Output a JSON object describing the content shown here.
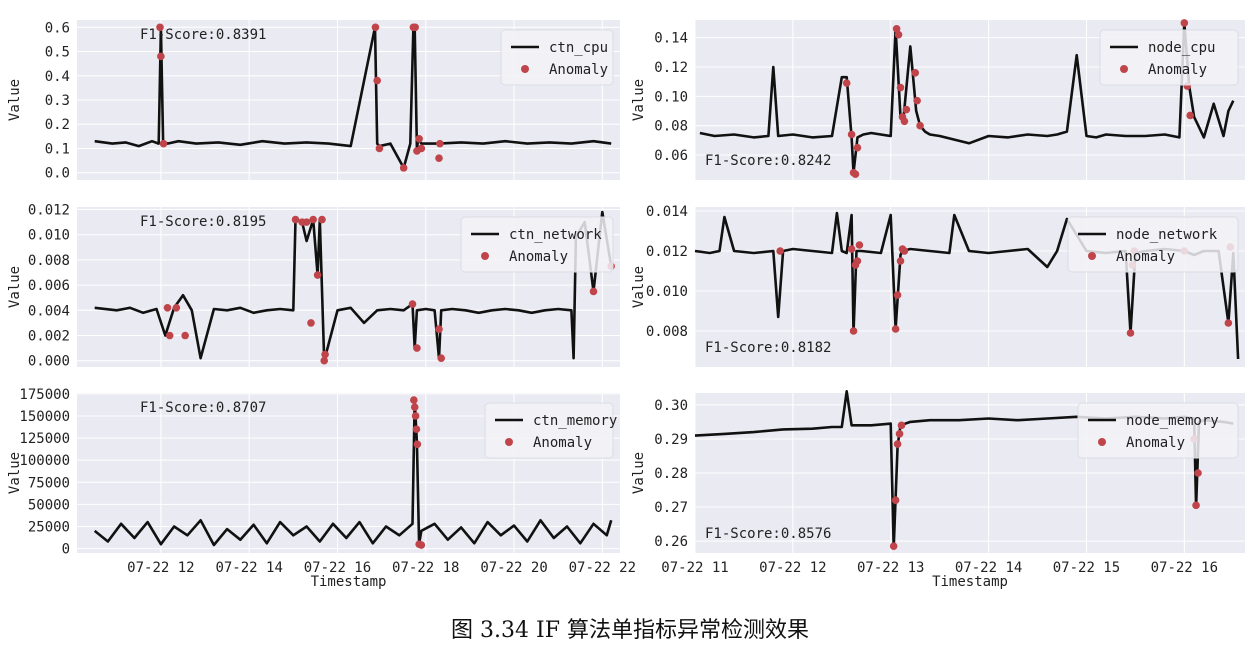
{
  "caption": "图 3.34 IF 算法单指标异常检测效果",
  "style": {
    "panel_bg": "#eaeaf2",
    "grid": "#ffffff",
    "line": "#111111",
    "anomaly": "#c0454a",
    "legend_bg": "#f2f2f7"
  },
  "chart_data": [
    {
      "type": "line",
      "id": "ctn_cpu",
      "ylabel": "Value",
      "xlabel": "",
      "ylim": [
        -0.03,
        0.63
      ],
      "xlim": [
        10.1,
        22.4
      ],
      "yticks": [
        "0.0",
        "0.1",
        "0.2",
        "0.3",
        "0.4",
        "0.5",
        "0.6"
      ],
      "ytick_values": [
        0,
        0.1,
        0.2,
        0.3,
        0.4,
        0.5,
        0.6
      ],
      "xticks": [],
      "xtick_values": [
        12,
        14,
        16,
        18,
        20,
        22
      ],
      "legend": [
        "ctn_cpu",
        "Anomaly"
      ],
      "legend_loc": "upper right",
      "annotation": "F1-Score:0.8391",
      "annotation_loc": "top-left",
      "series": [
        {
          "name": "ctn_cpu",
          "x": [
            10.5,
            10.9,
            11.2,
            11.5,
            11.8,
            11.95,
            12.0,
            12.05,
            12.15,
            12.4,
            12.8,
            13.3,
            13.8,
            14.3,
            14.8,
            15.3,
            15.8,
            16.3,
            16.85,
            16.9,
            16.95,
            17.2,
            17.5,
            17.65,
            17.72,
            17.75,
            17.8,
            17.83,
            17.9,
            18.3,
            18.8,
            19.3,
            19.8,
            20.3,
            20.8,
            21.3,
            21.8,
            22.2
          ],
          "y": [
            0.13,
            0.12,
            0.125,
            0.11,
            0.13,
            0.12,
            0.6,
            0.13,
            0.12,
            0.13,
            0.12,
            0.125,
            0.115,
            0.13,
            0.12,
            0.125,
            0.12,
            0.11,
            0.6,
            0.12,
            0.11,
            0.12,
            0.02,
            0.12,
            0.6,
            0.6,
            0.1,
            0.14,
            0.12,
            0.12,
            0.125,
            0.12,
            0.13,
            0.12,
            0.125,
            0.12,
            0.13,
            0.12
          ]
        }
      ],
      "anomalies": {
        "x": [
          11.98,
          12.0,
          12.06,
          16.86,
          16.9,
          16.95,
          17.5,
          17.72,
          17.76,
          17.8,
          17.85,
          17.9,
          18.3,
          18.32
        ],
        "y": [
          0.6,
          0.48,
          0.12,
          0.6,
          0.38,
          0.1,
          0.02,
          0.6,
          0.6,
          0.09,
          0.14,
          0.1,
          0.06,
          0.12
        ]
      }
    },
    {
      "type": "line",
      "id": "node_cpu",
      "ylabel": "Value",
      "xlabel": "",
      "ylim": [
        0.043,
        0.152
      ],
      "xlim": [
        11.0,
        16.62
      ],
      "yticks": [
        "0.06",
        "0.08",
        "0.10",
        "0.12",
        "0.14"
      ],
      "ytick_values": [
        0.06,
        0.08,
        0.1,
        0.12,
        0.14
      ],
      "xticks": [],
      "xtick_values": [
        11,
        12,
        13,
        14,
        15,
        16
      ],
      "legend": [
        "node_cpu",
        "Anomaly"
      ],
      "legend_loc": "upper right",
      "annotation": "F1-Score:0.8242",
      "annotation_loc": "bottom-left",
      "series": [
        {
          "name": "node_cpu",
          "x": [
            11.05,
            11.2,
            11.4,
            11.6,
            11.75,
            11.8,
            11.85,
            12.0,
            12.2,
            12.4,
            12.5,
            12.55,
            12.6,
            12.62,
            12.66,
            12.72,
            12.8,
            13.0,
            13.05,
            13.1,
            13.13,
            13.2,
            13.26,
            13.3,
            13.35,
            13.4,
            13.5,
            13.8,
            14.0,
            14.2,
            14.4,
            14.6,
            14.7,
            14.8,
            14.9,
            15.0,
            15.1,
            15.2,
            15.4,
            15.6,
            15.8,
            15.95,
            16.0,
            16.05,
            16.1,
            16.2,
            16.3,
            16.4,
            16.45,
            16.5
          ],
          "y": [
            0.075,
            0.073,
            0.074,
            0.072,
            0.073,
            0.12,
            0.073,
            0.074,
            0.072,
            0.073,
            0.113,
            0.113,
            0.072,
            0.048,
            0.072,
            0.074,
            0.075,
            0.073,
            0.146,
            0.086,
            0.085,
            0.134,
            0.09,
            0.08,
            0.076,
            0.074,
            0.073,
            0.068,
            0.073,
            0.072,
            0.074,
            0.073,
            0.074,
            0.076,
            0.128,
            0.073,
            0.072,
            0.074,
            0.073,
            0.073,
            0.074,
            0.072,
            0.15,
            0.107,
            0.086,
            0.072,
            0.095,
            0.073,
            0.09,
            0.097
          ]
        }
      ],
      "anomalies": {
        "x": [
          12.55,
          12.6,
          12.62,
          12.64,
          12.66,
          13.06,
          13.08,
          13.1,
          13.12,
          13.14,
          13.16,
          13.25,
          13.27,
          13.3,
          16.0,
          16.03,
          16.06
        ],
        "y": [
          0.109,
          0.074,
          0.048,
          0.047,
          0.065,
          0.146,
          0.142,
          0.106,
          0.086,
          0.083,
          0.091,
          0.116,
          0.097,
          0.08,
          0.15,
          0.107,
          0.087
        ]
      }
    },
    {
      "type": "line",
      "id": "ctn_network",
      "ylabel": "Value",
      "xlabel": "",
      "ylim": [
        -0.0005,
        0.0122
      ],
      "xlim": [
        10.1,
        22.4
      ],
      "yticks": [
        "0.000",
        "0.002",
        "0.004",
        "0.006",
        "0.008",
        "0.010",
        "0.012"
      ],
      "ytick_values": [
        0,
        0.002,
        0.004,
        0.006,
        0.008,
        0.01,
        0.012
      ],
      "xticks": [],
      "xtick_values": [
        12,
        14,
        16,
        18,
        20,
        22
      ],
      "legend": [
        "ctn_network",
        "Anomaly"
      ],
      "legend_loc": "upper right",
      "annotation": "F1-Score:0.8195",
      "annotation_loc": "top-left",
      "series": [
        {
          "name": "ctn_network",
          "x": [
            10.5,
            11.0,
            11.3,
            11.6,
            11.9,
            12.1,
            12.3,
            12.5,
            12.7,
            12.9,
            13.2,
            13.5,
            13.8,
            14.1,
            14.4,
            14.7,
            15.0,
            15.05,
            15.2,
            15.3,
            15.45,
            15.55,
            15.6,
            15.7,
            16.0,
            16.3,
            16.6,
            16.9,
            17.2,
            17.5,
            17.7,
            17.75,
            17.8,
            18.0,
            18.2,
            18.3,
            18.35,
            18.6,
            18.9,
            19.2,
            19.5,
            19.8,
            20.1,
            20.4,
            20.7,
            21.0,
            21.3,
            21.35,
            21.4,
            21.6,
            21.8,
            22.0,
            22.2
          ],
          "y": [
            0.0042,
            0.004,
            0.0042,
            0.0038,
            0.0041,
            0.002,
            0.0042,
            0.0052,
            0.004,
            0.0002,
            0.0041,
            0.004,
            0.0042,
            0.0038,
            0.004,
            0.0041,
            0.004,
            0.0112,
            0.011,
            0.0095,
            0.0112,
            0.0068,
            0.0112,
            0.0,
            0.004,
            0.0042,
            0.003,
            0.004,
            0.0041,
            0.004,
            0.0045,
            0.001,
            0.004,
            0.0041,
            0.004,
            0.0002,
            0.004,
            0.0041,
            0.004,
            0.0038,
            0.004,
            0.0041,
            0.004,
            0.0038,
            0.004,
            0.0041,
            0.004,
            0.0002,
            0.0098,
            0.011,
            0.0055,
            0.0118,
            0.0075
          ]
        }
      ],
      "anomalies": {
        "x": [
          12.15,
          12.2,
          12.35,
          12.55,
          15.05,
          15.2,
          15.3,
          15.4,
          15.45,
          15.55,
          15.65,
          15.7,
          15.72,
          17.7,
          17.8,
          18.3,
          18.35,
          21.8,
          22.2
        ],
        "y": [
          0.0042,
          0.002,
          0.0042,
          0.002,
          0.0112,
          0.011,
          0.011,
          0.003,
          0.0112,
          0.0068,
          0.0112,
          0.0,
          0.0005,
          0.0045,
          0.001,
          0.0025,
          0.0002,
          0.0055,
          0.0075
        ]
      }
    },
    {
      "type": "line",
      "id": "node_network",
      "ylabel": "Value",
      "xlabel": "",
      "ylim": [
        0.0062,
        0.0142
      ],
      "xlim": [
        11.0,
        16.62
      ],
      "yticks": [
        "0.008",
        "0.010",
        "0.012",
        "0.014"
      ],
      "ytick_values": [
        0.008,
        0.01,
        0.012,
        0.014
      ],
      "xticks": [],
      "xtick_values": [
        11,
        12,
        13,
        14,
        15,
        16
      ],
      "legend": [
        "node_network",
        "Anomaly"
      ],
      "legend_loc": "upper right",
      "annotation": "F1-Score:0.8182",
      "annotation_loc": "bottom-left",
      "series": [
        {
          "name": "node_network",
          "x": [
            11.0,
            11.15,
            11.25,
            11.3,
            11.4,
            11.6,
            11.8,
            11.85,
            11.9,
            12.0,
            12.2,
            12.4,
            12.45,
            12.5,
            12.55,
            12.6,
            12.62,
            12.65,
            12.7,
            12.9,
            13.0,
            13.05,
            13.1,
            13.12,
            13.2,
            13.4,
            13.6,
            13.65,
            13.8,
            14.0,
            14.2,
            14.4,
            14.6,
            14.7,
            14.8,
            15.0,
            15.2,
            15.4,
            15.45,
            15.5,
            15.6,
            15.8,
            16.0,
            16.1,
            16.2,
            16.35,
            16.45,
            16.5,
            16.55
          ],
          "y": [
            0.012,
            0.0119,
            0.012,
            0.0137,
            0.012,
            0.0119,
            0.012,
            0.0087,
            0.012,
            0.0121,
            0.012,
            0.0119,
            0.0139,
            0.012,
            0.0119,
            0.0138,
            0.0079,
            0.012,
            0.012,
            0.0119,
            0.0138,
            0.0081,
            0.0118,
            0.012,
            0.0121,
            0.012,
            0.0119,
            0.0138,
            0.012,
            0.0119,
            0.012,
            0.0121,
            0.0112,
            0.012,
            0.0136,
            0.012,
            0.0119,
            0.012,
            0.0079,
            0.0119,
            0.012,
            0.0121,
            0.012,
            0.0118,
            0.012,
            0.012,
            0.0084,
            0.0119,
            0.0066
          ]
        }
      ],
      "anomalies": {
        "x": [
          11.87,
          12.6,
          12.62,
          12.64,
          12.66,
          12.68,
          13.05,
          13.07,
          13.1,
          13.12,
          13.14,
          15.45,
          15.47,
          15.49,
          16.0,
          16.45,
          16.47
        ],
        "y": [
          0.012,
          0.0121,
          0.008,
          0.0113,
          0.0115,
          0.0123,
          0.0081,
          0.0098,
          0.0115,
          0.0121,
          0.012,
          0.0079,
          0.0113,
          0.012,
          0.012,
          0.0084,
          0.0122
        ]
      }
    },
    {
      "type": "line",
      "id": "ctn_memory",
      "ylabel": "Value",
      "xlabel": "Timestamp",
      "ylim": [
        -5000,
        176000
      ],
      "xlim": [
        10.1,
        22.4
      ],
      "yticks": [
        "0",
        "25000",
        "50000",
        "75000",
        "100000",
        "125000",
        "150000",
        "175000"
      ],
      "ytick_values": [
        0,
        25000,
        50000,
        75000,
        100000,
        125000,
        150000,
        175000
      ],
      "xticks": [
        "07-22 12",
        "07-22 14",
        "07-22 16",
        "07-22 18",
        "07-22 20",
        "07-22 22"
      ],
      "xtick_values": [
        12,
        14,
        16,
        18,
        20,
        22
      ],
      "legend": [
        "ctn_memory",
        "Anomaly"
      ],
      "legend_loc": "upper right",
      "annotation": "F1-Score:0.8707",
      "annotation_loc": "top-left",
      "series": [
        {
          "name": "ctn_memory",
          "x": [
            10.5,
            10.8,
            11.1,
            11.4,
            11.7,
            12.0,
            12.3,
            12.6,
            12.9,
            13.2,
            13.5,
            13.8,
            14.1,
            14.4,
            14.7,
            15.0,
            15.3,
            15.6,
            15.9,
            16.2,
            16.5,
            16.8,
            17.1,
            17.4,
            17.7,
            17.75,
            17.8,
            17.85,
            17.9,
            18.2,
            18.5,
            18.8,
            19.1,
            19.4,
            19.7,
            20.0,
            20.3,
            20.6,
            20.9,
            21.2,
            21.5,
            21.8,
            22.1,
            22.2
          ],
          "y": [
            20000,
            8000,
            28000,
            12000,
            30000,
            5000,
            25000,
            15000,
            32000,
            4000,
            22000,
            10000,
            27000,
            6000,
            30000,
            15000,
            25000,
            8000,
            28000,
            12000,
            30000,
            6000,
            25000,
            15000,
            28000,
            168000,
            120000,
            5000,
            20000,
            28000,
            10000,
            24000,
            6000,
            30000,
            15000,
            26000,
            8000,
            32000,
            12000,
            25000,
            6000,
            28000,
            15000,
            32000
          ]
        }
      ],
      "anomalies": {
        "x": [
          17.73,
          17.75,
          17.77,
          17.79,
          17.81,
          17.85,
          17.9
        ],
        "y": [
          168000,
          160000,
          150000,
          135000,
          118000,
          5000,
          4000
        ]
      }
    },
    {
      "type": "line",
      "id": "node_memory",
      "ylabel": "Value",
      "xlabel": "Timestamp",
      "ylim": [
        0.2565,
        0.3035
      ],
      "xlim": [
        11.0,
        16.62
      ],
      "yticks": [
        "0.26",
        "0.27",
        "0.28",
        "0.29",
        "0.30"
      ],
      "ytick_values": [
        0.26,
        0.27,
        0.28,
        0.29,
        0.3
      ],
      "xticks": [
        "07-22 11",
        "07-22 12",
        "07-22 13",
        "07-22 14",
        "07-22 15",
        "07-22 16"
      ],
      "xtick_values": [
        11,
        12,
        13,
        14,
        15,
        16
      ],
      "legend": [
        "node_memory",
        "Anomaly"
      ],
      "legend_loc": "upper right",
      "annotation": "F1-Score:0.8576",
      "annotation_loc": "bottom-left",
      "series": [
        {
          "name": "node_memory",
          "x": [
            11.0,
            11.3,
            11.6,
            11.9,
            12.2,
            12.4,
            12.5,
            12.55,
            12.6,
            12.8,
            13.0,
            13.03,
            13.07,
            13.1,
            13.2,
            13.4,
            13.7,
            14.0,
            14.3,
            14.6,
            14.9,
            15.2,
            15.5,
            15.8,
            16.0,
            16.1,
            16.12,
            16.15,
            16.2,
            16.4,
            16.5
          ],
          "y": [
            0.291,
            0.2915,
            0.292,
            0.2928,
            0.293,
            0.2935,
            0.2935,
            0.304,
            0.294,
            0.294,
            0.2945,
            0.258,
            0.288,
            0.294,
            0.295,
            0.2955,
            0.2955,
            0.296,
            0.2955,
            0.296,
            0.2965,
            0.296,
            0.2965,
            0.296,
            0.2965,
            0.296,
            0.27,
            0.295,
            0.2955,
            0.295,
            0.2945
          ]
        }
      ],
      "anomalies": {
        "x": [
          13.03,
          13.05,
          13.07,
          13.09,
          13.11,
          16.1,
          16.12,
          16.14
        ],
        "y": [
          0.2585,
          0.272,
          0.2885,
          0.2915,
          0.294,
          0.29,
          0.2705,
          0.28
        ]
      }
    }
  ]
}
